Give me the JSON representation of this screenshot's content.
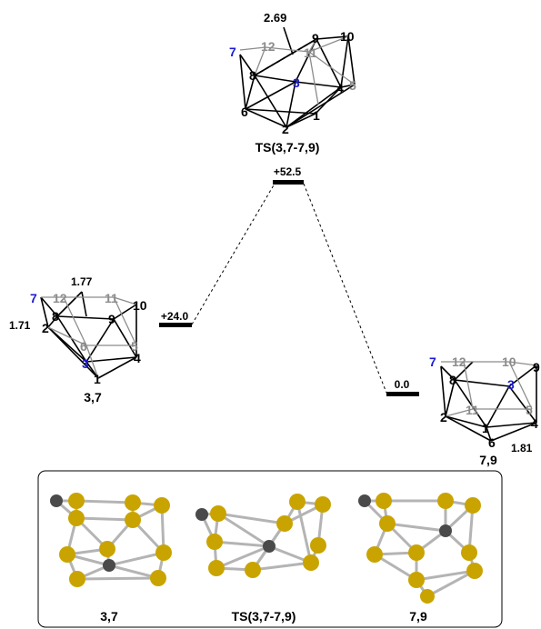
{
  "colors": {
    "black": "#000000",
    "gray": "#8c8c8c",
    "blue": "#1c1cd6",
    "boron": "#c9a400",
    "carbon": "#4a4a4a",
    "bond": "#b4b4b4"
  },
  "levels": {
    "reactant": {
      "energy": "+24.0",
      "label": "3,7"
    },
    "ts": {
      "energy": "+52.5",
      "label": "TS(3,7-7,9)"
    },
    "product": {
      "energy": "0.0",
      "label": "7,9"
    }
  },
  "ts_cluster": {
    "distance": "2.69",
    "atoms": [
      "7",
      "12",
      "11",
      "9",
      "10",
      "8",
      "3",
      "4",
      "5",
      "6",
      "1",
      "2"
    ]
  },
  "reactant_cluster": {
    "distance_top": "1.77",
    "distance_side": "1.71",
    "atoms": [
      "7",
      "12",
      "11",
      "10",
      "8",
      "9",
      "6",
      "5",
      "2",
      "3",
      "4",
      "1"
    ]
  },
  "product_cluster": {
    "distance": "1.81",
    "atoms": [
      "7",
      "12",
      "10",
      "9",
      "8",
      "3",
      "11",
      "5",
      "2",
      "1",
      "4",
      "6"
    ]
  },
  "panel": {
    "labels": [
      "3,7",
      "TS(3,7-7,9)",
      "7,9"
    ]
  }
}
